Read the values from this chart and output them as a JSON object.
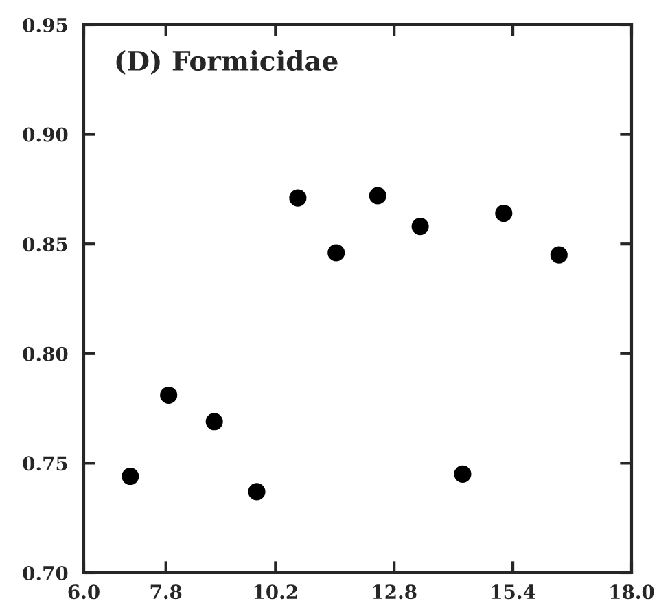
{
  "chart_data": {
    "type": "scatter",
    "title": "(D) Formicidae",
    "x": [
      7.02,
      7.86,
      8.86,
      9.79,
      10.69,
      11.53,
      12.44,
      13.37,
      14.3,
      15.2,
      16.41
    ],
    "values": [
      0.744,
      0.781,
      0.769,
      0.737,
      0.871,
      0.846,
      0.872,
      0.858,
      0.745,
      0.864,
      0.845
    ],
    "color": "#000000",
    "marker": "circle",
    "xlim": [
      6.0,
      18.0
    ],
    "xticks": [
      {
        "value": 6.0,
        "label": "6.0"
      },
      {
        "value": 7.8,
        "label": "7.8"
      },
      {
        "value": 10.2,
        "label": "10.2"
      },
      {
        "value": 12.8,
        "label": "12.8"
      },
      {
        "value": 15.4,
        "label": "15.4"
      },
      {
        "value": 18.0,
        "label": "18.0"
      }
    ],
    "ylim": [
      0.7,
      0.95
    ],
    "yticks": [
      {
        "value": 0.7,
        "label": "0.70"
      },
      {
        "value": 0.75,
        "label": "0.75"
      },
      {
        "value": 0.8,
        "label": "0.80"
      },
      {
        "value": 0.85,
        "label": "0.85"
      },
      {
        "value": 0.9,
        "label": "0.90"
      },
      {
        "value": 0.95,
        "label": "0.95"
      }
    ],
    "grid": false,
    "legend": false
  }
}
